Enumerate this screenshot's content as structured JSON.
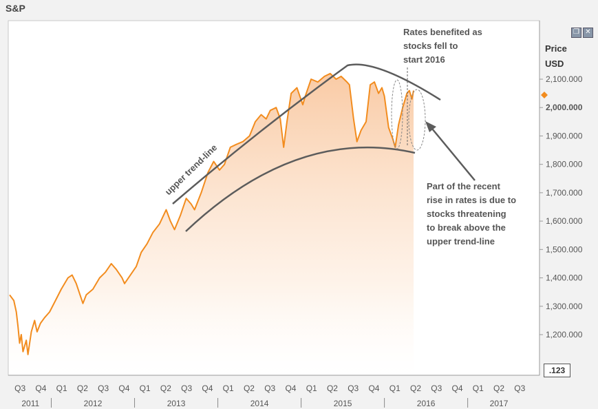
{
  "chart_title": "S&P",
  "y_axis_label_line1": "Price",
  "y_axis_label_line2": "USD",
  "price_box": ".123",
  "annotations": {
    "upper_trend": "upper trend-line",
    "rates_benefited": [
      "Rates benefited as",
      "stocks fell to",
      "start 2016"
    ],
    "recent_rise": [
      "Part of the recent",
      "rise in rates is due to",
      "stocks threatening",
      "to break above the",
      "upper trend-line"
    ]
  },
  "window_icons": [
    "restore-icon",
    "close-icon"
  ],
  "colors": {
    "series": "#f28c1e",
    "trend": "#5c5c5c",
    "fill_top": "#f7b987"
  },
  "chart_data": {
    "type": "area",
    "title": "S&P",
    "ylabel": "Price USD",
    "ylim": [
      1100,
      2200
    ],
    "y_ticks": [
      {
        "value": 1200,
        "label": "1,200.000"
      },
      {
        "value": 1300,
        "label": "1,300.000"
      },
      {
        "value": 1400,
        "label": "1,400.000"
      },
      {
        "value": 1500,
        "label": "1,500.000"
      },
      {
        "value": 1600,
        "label": "1,600.000"
      },
      {
        "value": 1700,
        "label": "1,700.000"
      },
      {
        "value": 1800,
        "label": "1,800.000"
      },
      {
        "value": 1900,
        "label": "1,900.000"
      },
      {
        "value": 2000,
        "label": "2,000.000"
      },
      {
        "value": 2100,
        "label": "2,100.000"
      }
    ],
    "current_value": 2000,
    "xlim": [
      2011.5,
      2017.75
    ],
    "x_quarter_labels": [
      {
        "t": 2011.625,
        "label": "Q3"
      },
      {
        "t": 2011.875,
        "label": "Q4"
      },
      {
        "t": 2012.125,
        "label": "Q1"
      },
      {
        "t": 2012.375,
        "label": "Q2"
      },
      {
        "t": 2012.625,
        "label": "Q3"
      },
      {
        "t": 2012.875,
        "label": "Q4"
      },
      {
        "t": 2013.125,
        "label": "Q1"
      },
      {
        "t": 2013.375,
        "label": "Q2"
      },
      {
        "t": 2013.625,
        "label": "Q3"
      },
      {
        "t": 2013.875,
        "label": "Q4"
      },
      {
        "t": 2014.125,
        "label": "Q1"
      },
      {
        "t": 2014.375,
        "label": "Q2"
      },
      {
        "t": 2014.625,
        "label": "Q3"
      },
      {
        "t": 2014.875,
        "label": "Q4"
      },
      {
        "t": 2015.125,
        "label": "Q1"
      },
      {
        "t": 2015.375,
        "label": "Q2"
      },
      {
        "t": 2015.625,
        "label": "Q3"
      },
      {
        "t": 2015.875,
        "label": "Q4"
      },
      {
        "t": 2016.125,
        "label": "Q1"
      },
      {
        "t": 2016.375,
        "label": "Q2"
      },
      {
        "t": 2016.625,
        "label": "Q3"
      },
      {
        "t": 2016.875,
        "label": "Q4"
      },
      {
        "t": 2017.125,
        "label": "Q1"
      },
      {
        "t": 2017.375,
        "label": "Q2"
      },
      {
        "t": 2017.625,
        "label": "Q3"
      }
    ],
    "x_year_labels": [
      {
        "t": 2011.75,
        "label": "2011"
      },
      {
        "t": 2012.5,
        "label": "2012"
      },
      {
        "t": 2013.5,
        "label": "2013"
      },
      {
        "t": 2014.5,
        "label": "2014"
      },
      {
        "t": 2015.5,
        "label": "2015"
      },
      {
        "t": 2016.5,
        "label": "2016"
      },
      {
        "t": 2017.375,
        "label": "2017"
      }
    ],
    "series": [
      {
        "points": [
          [
            2011.5,
            1340
          ],
          [
            2011.55,
            1320
          ],
          [
            2011.58,
            1280
          ],
          [
            2011.6,
            1230
          ],
          [
            2011.62,
            1170
          ],
          [
            2011.64,
            1200
          ],
          [
            2011.66,
            1140
          ],
          [
            2011.7,
            1180
          ],
          [
            2011.72,
            1130
          ],
          [
            2011.76,
            1210
          ],
          [
            2011.8,
            1250
          ],
          [
            2011.83,
            1210
          ],
          [
            2011.87,
            1240
          ],
          [
            2011.92,
            1260
          ],
          [
            2011.98,
            1280
          ],
          [
            2012.05,
            1320
          ],
          [
            2012.12,
            1360
          ],
          [
            2012.2,
            1400
          ],
          [
            2012.25,
            1410
          ],
          [
            2012.3,
            1380
          ],
          [
            2012.38,
            1310
          ],
          [
            2012.42,
            1340
          ],
          [
            2012.5,
            1360
          ],
          [
            2012.58,
            1400
          ],
          [
            2012.65,
            1420
          ],
          [
            2012.72,
            1450
          ],
          [
            2012.78,
            1430
          ],
          [
            2012.85,
            1400
          ],
          [
            2012.88,
            1380
          ],
          [
            2012.95,
            1410
          ],
          [
            2013.02,
            1440
          ],
          [
            2013.08,
            1490
          ],
          [
            2013.15,
            1520
          ],
          [
            2013.22,
            1560
          ],
          [
            2013.3,
            1590
          ],
          [
            2013.38,
            1640
          ],
          [
            2013.43,
            1600
          ],
          [
            2013.48,
            1570
          ],
          [
            2013.55,
            1620
          ],
          [
            2013.62,
            1680
          ],
          [
            2013.68,
            1660
          ],
          [
            2013.72,
            1640
          ],
          [
            2013.8,
            1700
          ],
          [
            2013.88,
            1770
          ],
          [
            2013.95,
            1810
          ],
          [
            2014.02,
            1780
          ],
          [
            2014.08,
            1800
          ],
          [
            2014.15,
            1860
          ],
          [
            2014.22,
            1870
          ],
          [
            2014.3,
            1880
          ],
          [
            2014.38,
            1900
          ],
          [
            2014.45,
            1950
          ],
          [
            2014.52,
            1975
          ],
          [
            2014.58,
            1960
          ],
          [
            2014.63,
            1990
          ],
          [
            2014.7,
            2000
          ],
          [
            2014.75,
            1960
          ],
          [
            2014.79,
            1860
          ],
          [
            2014.83,
            1950
          ],
          [
            2014.88,
            2050
          ],
          [
            2014.95,
            2070
          ],
          [
            2015.02,
            2010
          ],
          [
            2015.05,
            2040
          ],
          [
            2015.12,
            2100
          ],
          [
            2015.2,
            2090
          ],
          [
            2015.28,
            2110
          ],
          [
            2015.35,
            2120
          ],
          [
            2015.42,
            2100
          ],
          [
            2015.48,
            2110
          ],
          [
            2015.55,
            2090
          ],
          [
            2015.58,
            2080
          ],
          [
            2015.63,
            1960
          ],
          [
            2015.67,
            1880
          ],
          [
            2015.72,
            1920
          ],
          [
            2015.78,
            1950
          ],
          [
            2015.83,
            2080
          ],
          [
            2015.88,
            2090
          ],
          [
            2015.93,
            2050
          ],
          [
            2015.97,
            2070
          ],
          [
            2016.0,
            2040
          ],
          [
            2016.05,
            1930
          ],
          [
            2016.1,
            1890
          ],
          [
            2016.13,
            1860
          ],
          [
            2016.17,
            1940
          ],
          [
            2016.22,
            2000
          ],
          [
            2016.27,
            2050
          ],
          [
            2016.3,
            2060
          ],
          [
            2016.33,
            2030
          ],
          [
            2016.35,
            2060
          ]
        ]
      }
    ]
  }
}
